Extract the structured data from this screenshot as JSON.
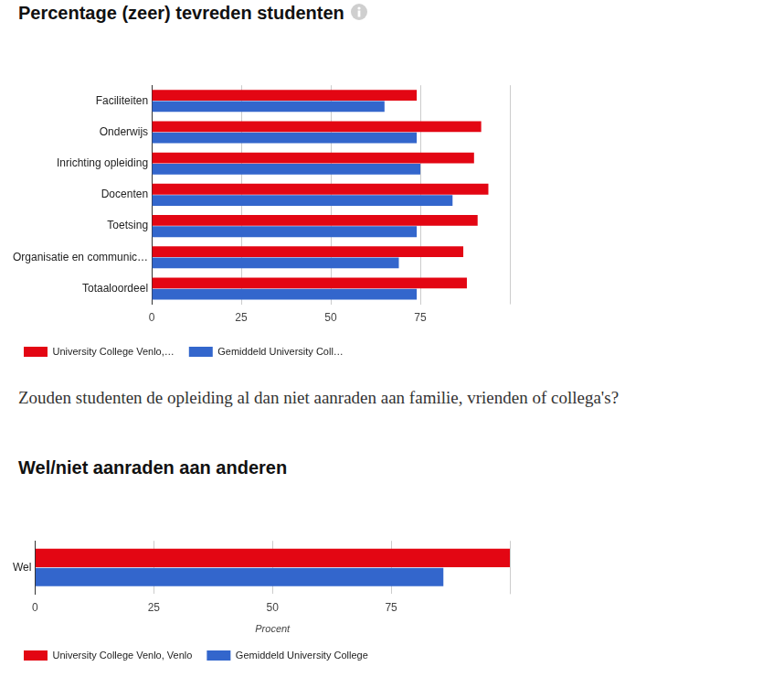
{
  "question": "Zouden studenten de opleiding al dan niet aanraden aan familie, vrienden of collega's?",
  "chart_data": [
    {
      "type": "bar",
      "title": "Percentage (zeer) tevreden studenten",
      "orientation": "horizontal",
      "categories": [
        "Faciliteiten",
        "Onderwijs",
        "Inrichting opleiding",
        "Docenten",
        "Toetsing",
        "Organisatie en communic…",
        "Totaaloordeel"
      ],
      "series": [
        {
          "name": "University College Venlo,…",
          "color": "#e30613",
          "values": [
            74,
            92,
            90,
            94,
            91,
            87,
            88
          ]
        },
        {
          "name": "Gemiddeld University Coll…",
          "color": "#3366cc",
          "values": [
            65,
            74,
            75,
            84,
            74,
            69,
            74
          ]
        }
      ],
      "xlim": [
        0,
        100
      ],
      "xticks": [
        0,
        25,
        50,
        75
      ],
      "grid": true,
      "legend": "bottom"
    },
    {
      "type": "bar",
      "title": "Wel/niet aanraden aan anderen",
      "orientation": "horizontal",
      "categories": [
        "Wel"
      ],
      "series": [
        {
          "name": "University College Venlo, Venlo",
          "color": "#e30613",
          "values": [
            100
          ]
        },
        {
          "name": "Gemiddeld University College",
          "color": "#3366cc",
          "values": [
            86
          ]
        }
      ],
      "xlabel": "Procent",
      "xlim": [
        0,
        100
      ],
      "xticks": [
        0,
        25,
        50,
        75
      ],
      "grid": true,
      "legend": "bottom"
    }
  ]
}
